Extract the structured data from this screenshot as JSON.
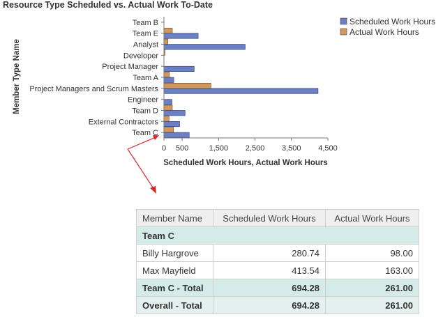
{
  "chart_data": {
    "type": "bar",
    "orientation": "horizontal",
    "title": "Resource Type Scheduled vs. Actual Work To-Date",
    "xlabel": "Scheduled Work Hours, Actual Work Hours",
    "ylabel": "Member Type Name",
    "categories": [
      "Team B",
      "Team E",
      "Analyst",
      "Developer",
      "Project Manager",
      "Team A",
      "Project Managers and Scrum Masters",
      "Engineer",
      "Team D",
      "External Contractors",
      "Team C"
    ],
    "series": [
      {
        "name": "Scheduled Work Hours",
        "color": "#6b80c4",
        "values": [
          0,
          940,
          2230,
          0,
          830,
          270,
          4230,
          220,
          580,
          430,
          694.28
        ]
      },
      {
        "name": "Actual Work Hours",
        "color": "#d4975a",
        "values": [
          0,
          230,
          110,
          30,
          0,
          150,
          1290,
          0,
          230,
          140,
          261
        ]
      }
    ],
    "xlim": [
      0,
      4500
    ],
    "xticks": [
      0,
      500,
      1500,
      2500,
      3500,
      4500
    ],
    "xtick_labels": [
      "0",
      "500",
      "1,500",
      "2,500",
      "3,500",
      "4,500"
    ],
    "legend_position": "top-right",
    "grid": false
  },
  "table": {
    "headers": [
      "Member Name",
      "Scheduled Work Hours",
      "Actual Work Hours"
    ],
    "group": "Team C",
    "rows": [
      {
        "name": "Billy Hargrove",
        "scheduled": "280.74",
        "actual": "98.00"
      },
      {
        "name": "Max Mayfield",
        "scheduled": "413.54",
        "actual": "163.00"
      }
    ],
    "subtotal": {
      "label": "Team C - Total",
      "scheduled": "694.28",
      "actual": "261.00"
    },
    "total": {
      "label": "Overall - Total",
      "scheduled": "694.28",
      "actual": "261.00"
    }
  },
  "annotation": {
    "color": "#d42a2a"
  }
}
